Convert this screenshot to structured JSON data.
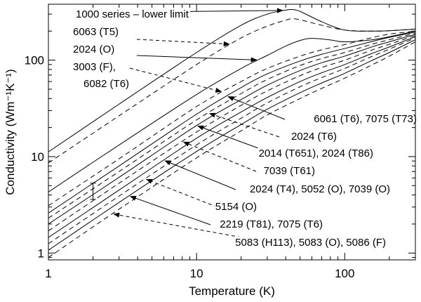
{
  "chart_data": {
    "type": "line",
    "title": "",
    "xlabel": "Temperature (K)",
    "ylabel": "Conductivity (Wm⁻¹K⁻¹)",
    "xscale": "log",
    "yscale": "log",
    "xlim": [
      1,
      300
    ],
    "ylim": [
      0.85,
      380
    ],
    "xticks": [
      1,
      10,
      100
    ],
    "xtick_labels": [
      "1",
      "10",
      "100"
    ],
    "yticks": [
      1,
      10,
      100
    ],
    "ytick_labels": [
      "1",
      "10",
      "100"
    ],
    "grid": false,
    "legend": "annotation arrows pointing to curves",
    "error_bar": {
      "x": 2,
      "low": 3.6,
      "high": 5.3
    },
    "series": [
      {
        "name": "1000 series – lower limit",
        "style": "solid",
        "label_x": 39,
        "x": [
          1,
          3,
          10,
          20,
          30,
          40,
          44,
          50,
          70,
          100,
          150,
          200,
          300
        ],
        "values": [
          11.2,
          35,
          120,
          230,
          300,
          330,
          335,
          320,
          250,
          205,
          200,
          202,
          210
        ]
      },
      {
        "name": "6063 (T5)",
        "style": "dashed",
        "label_x": 17,
        "x": [
          1,
          3,
          10,
          20,
          30,
          40,
          44,
          50,
          70,
          100,
          150,
          200,
          300
        ],
        "values": [
          8.6,
          26.5,
          90,
          170,
          225,
          260,
          268,
          262,
          230,
          205,
          200,
          202,
          210
        ]
      },
      {
        "name": "2024 (O)",
        "style": "solid",
        "label_x": 26,
        "x": [
          1,
          3,
          10,
          20,
          30,
          40,
          50,
          60,
          80,
          100,
          150,
          200,
          300
        ],
        "values": [
          4.3,
          13.2,
          44,
          82,
          112,
          140,
          160,
          168,
          162,
          155,
          162,
          175,
          200
        ]
      },
      {
        "name": "3003 (F), 6082 (T6)",
        "style": "dashed",
        "label_x": 15,
        "x": [
          1,
          3,
          10,
          20,
          30,
          50,
          70,
          100,
          150,
          200,
          300
        ],
        "values": [
          3.1,
          9.5,
          33,
          60,
          82,
          110,
          128,
          145,
          170,
          186,
          200
        ]
      },
      {
        "name": "6061 (T6), 7075 (T73)",
        "style": "solid",
        "label_x": 16,
        "x": [
          1,
          3,
          10,
          20,
          30,
          50,
          70,
          100,
          150,
          200,
          300
        ],
        "values": [
          2.6,
          8.0,
          27.5,
          52,
          72,
          98,
          115,
          132,
          155,
          172,
          195
        ]
      },
      {
        "name": "2024 (T6)",
        "style": "dashed",
        "label_x": 12,
        "x": [
          1,
          3,
          10,
          20,
          30,
          50,
          70,
          100,
          150,
          200,
          300
        ],
        "values": [
          2.3,
          7.0,
          24,
          45,
          63,
          88,
          104,
          120,
          145,
          163,
          190
        ]
      },
      {
        "name": "2014 (T651), 2024 (T86)",
        "style": "solid",
        "label_x": 10,
        "x": [
          1,
          3,
          10,
          20,
          30,
          50,
          70,
          100,
          150,
          200,
          300
        ],
        "values": [
          2.0,
          6.1,
          21,
          39,
          55,
          78,
          94,
          110,
          136,
          155,
          185
        ]
      },
      {
        "name": "7039 (T61)",
        "style": "dashed",
        "label_x": 8,
        "x": [
          1,
          3,
          10,
          20,
          30,
          50,
          70,
          100,
          150,
          200,
          300
        ],
        "values": [
          1.7,
          5.3,
          18,
          34,
          48,
          69,
          84,
          100,
          126,
          146,
          180
        ]
      },
      {
        "name": "2024 (T4), 5052 (O), 7039 (O)",
        "style": "solid",
        "label_x": 6,
        "x": [
          1,
          3,
          10,
          20,
          30,
          50,
          70,
          100,
          150,
          200,
          300
        ],
        "values": [
          1.45,
          4.5,
          15.5,
          29,
          41,
          60,
          74,
          90,
          116,
          137,
          175
        ]
      },
      {
        "name": "5154 (O)",
        "style": "dashed",
        "label_x": 4.5,
        "x": [
          1,
          3,
          10,
          20,
          30,
          50,
          70,
          100,
          150,
          200,
          300
        ],
        "values": [
          1.25,
          3.9,
          13.2,
          25,
          36,
          53,
          66,
          82,
          108,
          130,
          170
        ]
      },
      {
        "name": "2219 (T81), 7075 (T6)",
        "style": "solid",
        "label_x": 3.5,
        "x": [
          1,
          3,
          10,
          20,
          30,
          50,
          70,
          100,
          150,
          200,
          300
        ],
        "values": [
          1.07,
          3.35,
          11.3,
          21.5,
          31,
          46,
          58,
          73,
          98,
          120,
          163
        ]
      },
      {
        "name": "5083 (H113), 5083 (O), 5086 (F)",
        "style": "dashed",
        "label_x": 2.7,
        "x": [
          1,
          3,
          10,
          20,
          30,
          50,
          70,
          100,
          150,
          200,
          300
        ],
        "values": [
          0.9,
          2.85,
          9.7,
          18.5,
          27,
          40,
          51,
          65,
          88,
          110,
          155
        ]
      }
    ],
    "annotations": [
      {
        "lines": [
          "1000 series – lower limit"
        ],
        "arrow": "solid",
        "target": 0
      },
      {
        "lines": [
          "6063 (T5)"
        ],
        "arrow": "dashed",
        "target": 1
      },
      {
        "lines": [
          "2024 (O)"
        ],
        "arrow": "solid",
        "target": 2
      },
      {
        "lines": [
          "3003 (F),",
          "6082 (T6)"
        ],
        "arrow": "dashed",
        "target": 3
      },
      {
        "lines": [
          "6061 (T6), 7075 (T73)"
        ],
        "arrow": "solid",
        "target": 4
      },
      {
        "lines": [
          "2024 (T6)"
        ],
        "arrow": "dashed",
        "target": 5
      },
      {
        "lines": [
          "2014 (T651), 2024 (T86)"
        ],
        "arrow": "solid",
        "target": 6
      },
      {
        "lines": [
          "7039 (T61)"
        ],
        "arrow": "dashed",
        "target": 7
      },
      {
        "lines": [
          "2024 (T4), 5052 (O), 7039 (O)"
        ],
        "arrow": "solid",
        "target": 8
      },
      {
        "lines": [
          "5154 (O)"
        ],
        "arrow": "dashed",
        "target": 9
      },
      {
        "lines": [
          "2219 (T81), 7075 (T6)"
        ],
        "arrow": "solid",
        "target": 10
      },
      {
        "lines": [
          "5083 (H113), 5083 (O), 5086 (F)"
        ],
        "arrow": "dashed",
        "target": 11
      }
    ]
  }
}
